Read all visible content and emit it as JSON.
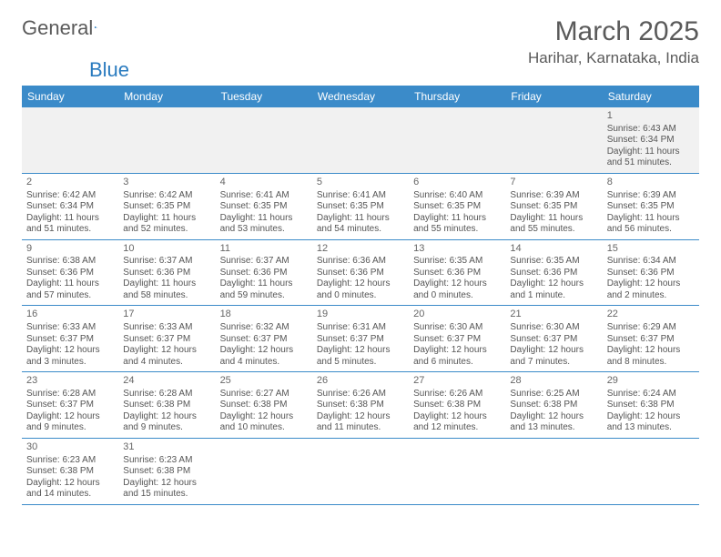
{
  "brand": {
    "part1": "General",
    "part2": "Blue"
  },
  "title": "March 2025",
  "location": "Harihar, Karnataka, India",
  "colors": {
    "header_bg": "#3b8bc9",
    "header_text": "#ffffff",
    "row_border": "#3b8bc9",
    "alt_row_bg": "#f1f1f1",
    "text": "#555555",
    "brand_blue": "#2a7bbf"
  },
  "layout": {
    "columns": 7,
    "rows": 6,
    "first_day_index": 6
  },
  "day_headers": [
    "Sunday",
    "Monday",
    "Tuesday",
    "Wednesday",
    "Thursday",
    "Friday",
    "Saturday"
  ],
  "days": [
    {
      "n": "1",
      "sunrise": "Sunrise: 6:43 AM",
      "sunset": "Sunset: 6:34 PM",
      "daylight": "Daylight: 11 hours and 51 minutes."
    },
    {
      "n": "2",
      "sunrise": "Sunrise: 6:42 AM",
      "sunset": "Sunset: 6:34 PM",
      "daylight": "Daylight: 11 hours and 51 minutes."
    },
    {
      "n": "3",
      "sunrise": "Sunrise: 6:42 AM",
      "sunset": "Sunset: 6:35 PM",
      "daylight": "Daylight: 11 hours and 52 minutes."
    },
    {
      "n": "4",
      "sunrise": "Sunrise: 6:41 AM",
      "sunset": "Sunset: 6:35 PM",
      "daylight": "Daylight: 11 hours and 53 minutes."
    },
    {
      "n": "5",
      "sunrise": "Sunrise: 6:41 AM",
      "sunset": "Sunset: 6:35 PM",
      "daylight": "Daylight: 11 hours and 54 minutes."
    },
    {
      "n": "6",
      "sunrise": "Sunrise: 6:40 AM",
      "sunset": "Sunset: 6:35 PM",
      "daylight": "Daylight: 11 hours and 55 minutes."
    },
    {
      "n": "7",
      "sunrise": "Sunrise: 6:39 AM",
      "sunset": "Sunset: 6:35 PM",
      "daylight": "Daylight: 11 hours and 55 minutes."
    },
    {
      "n": "8",
      "sunrise": "Sunrise: 6:39 AM",
      "sunset": "Sunset: 6:35 PM",
      "daylight": "Daylight: 11 hours and 56 minutes."
    },
    {
      "n": "9",
      "sunrise": "Sunrise: 6:38 AM",
      "sunset": "Sunset: 6:36 PM",
      "daylight": "Daylight: 11 hours and 57 minutes."
    },
    {
      "n": "10",
      "sunrise": "Sunrise: 6:37 AM",
      "sunset": "Sunset: 6:36 PM",
      "daylight": "Daylight: 11 hours and 58 minutes."
    },
    {
      "n": "11",
      "sunrise": "Sunrise: 6:37 AM",
      "sunset": "Sunset: 6:36 PM",
      "daylight": "Daylight: 11 hours and 59 minutes."
    },
    {
      "n": "12",
      "sunrise": "Sunrise: 6:36 AM",
      "sunset": "Sunset: 6:36 PM",
      "daylight": "Daylight: 12 hours and 0 minutes."
    },
    {
      "n": "13",
      "sunrise": "Sunrise: 6:35 AM",
      "sunset": "Sunset: 6:36 PM",
      "daylight": "Daylight: 12 hours and 0 minutes."
    },
    {
      "n": "14",
      "sunrise": "Sunrise: 6:35 AM",
      "sunset": "Sunset: 6:36 PM",
      "daylight": "Daylight: 12 hours and 1 minute."
    },
    {
      "n": "15",
      "sunrise": "Sunrise: 6:34 AM",
      "sunset": "Sunset: 6:36 PM",
      "daylight": "Daylight: 12 hours and 2 minutes."
    },
    {
      "n": "16",
      "sunrise": "Sunrise: 6:33 AM",
      "sunset": "Sunset: 6:37 PM",
      "daylight": "Daylight: 12 hours and 3 minutes."
    },
    {
      "n": "17",
      "sunrise": "Sunrise: 6:33 AM",
      "sunset": "Sunset: 6:37 PM",
      "daylight": "Daylight: 12 hours and 4 minutes."
    },
    {
      "n": "18",
      "sunrise": "Sunrise: 6:32 AM",
      "sunset": "Sunset: 6:37 PM",
      "daylight": "Daylight: 12 hours and 4 minutes."
    },
    {
      "n": "19",
      "sunrise": "Sunrise: 6:31 AM",
      "sunset": "Sunset: 6:37 PM",
      "daylight": "Daylight: 12 hours and 5 minutes."
    },
    {
      "n": "20",
      "sunrise": "Sunrise: 6:30 AM",
      "sunset": "Sunset: 6:37 PM",
      "daylight": "Daylight: 12 hours and 6 minutes."
    },
    {
      "n": "21",
      "sunrise": "Sunrise: 6:30 AM",
      "sunset": "Sunset: 6:37 PM",
      "daylight": "Daylight: 12 hours and 7 minutes."
    },
    {
      "n": "22",
      "sunrise": "Sunrise: 6:29 AM",
      "sunset": "Sunset: 6:37 PM",
      "daylight": "Daylight: 12 hours and 8 minutes."
    },
    {
      "n": "23",
      "sunrise": "Sunrise: 6:28 AM",
      "sunset": "Sunset: 6:37 PM",
      "daylight": "Daylight: 12 hours and 9 minutes."
    },
    {
      "n": "24",
      "sunrise": "Sunrise: 6:28 AM",
      "sunset": "Sunset: 6:38 PM",
      "daylight": "Daylight: 12 hours and 9 minutes."
    },
    {
      "n": "25",
      "sunrise": "Sunrise: 6:27 AM",
      "sunset": "Sunset: 6:38 PM",
      "daylight": "Daylight: 12 hours and 10 minutes."
    },
    {
      "n": "26",
      "sunrise": "Sunrise: 6:26 AM",
      "sunset": "Sunset: 6:38 PM",
      "daylight": "Daylight: 12 hours and 11 minutes."
    },
    {
      "n": "27",
      "sunrise": "Sunrise: 6:26 AM",
      "sunset": "Sunset: 6:38 PM",
      "daylight": "Daylight: 12 hours and 12 minutes."
    },
    {
      "n": "28",
      "sunrise": "Sunrise: 6:25 AM",
      "sunset": "Sunset: 6:38 PM",
      "daylight": "Daylight: 12 hours and 13 minutes."
    },
    {
      "n": "29",
      "sunrise": "Sunrise: 6:24 AM",
      "sunset": "Sunset: 6:38 PM",
      "daylight": "Daylight: 12 hours and 13 minutes."
    },
    {
      "n": "30",
      "sunrise": "Sunrise: 6:23 AM",
      "sunset": "Sunset: 6:38 PM",
      "daylight": "Daylight: 12 hours and 14 minutes."
    },
    {
      "n": "31",
      "sunrise": "Sunrise: 6:23 AM",
      "sunset": "Sunset: 6:38 PM",
      "daylight": "Daylight: 12 hours and 15 minutes."
    }
  ]
}
